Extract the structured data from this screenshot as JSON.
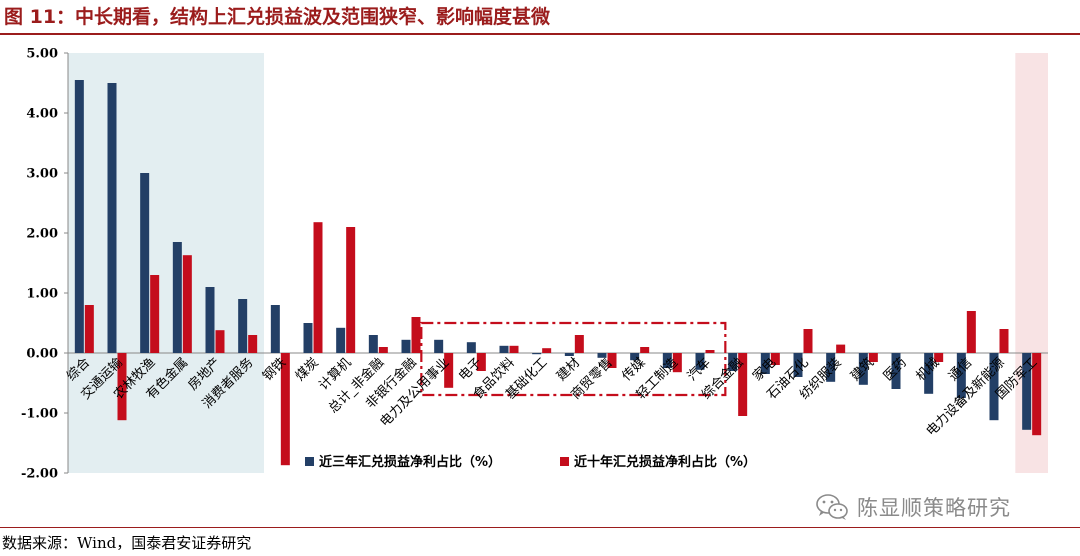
{
  "title": "图 11：中长期看，结构上汇兑损益波及范围狭窄、影响幅度甚微",
  "source": "数据来源：Wind，国泰君安证券研究",
  "watermark": {
    "icon": "wechat-icon",
    "text": "陈显顺策略研究"
  },
  "colors": {
    "series1": "#233f66",
    "series2": "#c40d1c",
    "left_band": "#e3eef1",
    "right_band": "#f8e3e4",
    "dash_box": "#c40d1c",
    "axis": "#888888",
    "title": "#9b1c1c"
  },
  "chart_data": {
    "type": "bar",
    "title": "",
    "xlabel": "",
    "ylabel": "",
    "ylim": [
      -2.0,
      5.0
    ],
    "yticks": [
      "5.00",
      "4.00",
      "3.00",
      "2.00",
      "1.00",
      "0.00",
      "-1.00",
      "-2.00"
    ],
    "grid": false,
    "legend_position": "bottom",
    "categories": [
      "综合",
      "交通运输",
      "农林牧渔",
      "有色金属",
      "房地产",
      "消费者服务",
      "钢铁",
      "煤炭",
      "计算机",
      "总计_非金融",
      "非银行金融",
      "电力及公用事业",
      "电子",
      "食品饮料",
      "基础化工",
      "建材",
      "商贸零售",
      "传媒",
      "轻工制造",
      "汽车",
      "综合金融",
      "家电",
      "石油石化",
      "纺织服装",
      "建筑",
      "医药",
      "机械",
      "通信",
      "电力设备及新能源",
      "国防军工"
    ],
    "series": [
      {
        "name": "近三年汇兑损益净利占比（%）",
        "values": [
          4.55,
          4.5,
          3.0,
          1.85,
          1.1,
          0.9,
          0.8,
          0.5,
          0.42,
          0.3,
          0.22,
          0.22,
          0.18,
          0.12,
          -0.02,
          -0.05,
          -0.08,
          -0.12,
          -0.25,
          -0.28,
          -0.3,
          -0.35,
          -0.4,
          -0.48,
          -0.53,
          -0.6,
          -0.68,
          -0.75,
          -1.12,
          -1.28
        ]
      },
      {
        "name": "近十年汇兑损益净利占比（%）",
        "values": [
          0.8,
          -1.12,
          1.3,
          1.63,
          0.38,
          0.3,
          -1.87,
          2.18,
          2.1,
          0.1,
          0.6,
          -0.58,
          -0.3,
          0.12,
          0.08,
          0.3,
          -0.25,
          0.1,
          -0.32,
          0.05,
          -1.05,
          -0.2,
          0.4,
          0.14,
          -0.15,
          0.0,
          -0.15,
          0.7,
          0.4,
          -1.37
        ]
      }
    ],
    "annotations": [
      {
        "type": "shaded-region",
        "from_category": "综合",
        "to_category": "消费者服务",
        "color": "#e3eef1"
      },
      {
        "type": "shaded-region",
        "from_category": "国防军工",
        "to_category": "国防军工",
        "color": "#f8e3e4"
      },
      {
        "type": "dashed-box",
        "from_category": "电力及公用事业",
        "to_category": "汽车",
        "y_range": [
          -0.7,
          0.5
        ]
      }
    ]
  }
}
